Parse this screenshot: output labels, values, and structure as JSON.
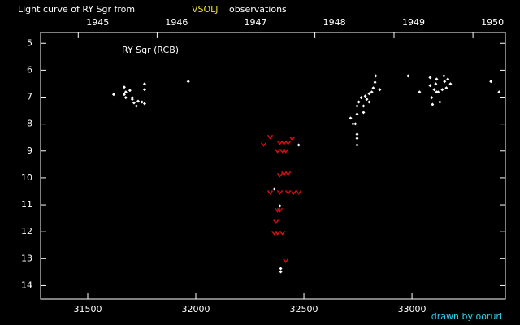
{
  "chart_data": {
    "type": "scatter",
    "title": "Light curve of RY Sgr from",
    "title_source": "VSOLJ",
    "title_suffix": "observations",
    "annotation": "RY Sgr (RCB)",
    "credit": "drawn by ooruri",
    "xlim": [
      31282,
      33432
    ],
    "ylim": [
      4.6,
      14.5
    ],
    "y_inverted": true,
    "xticks": [
      31500,
      32000,
      32500,
      33000
    ],
    "yticks": [
      5,
      6,
      7,
      8,
      9,
      10,
      11,
      12,
      13,
      14
    ],
    "x2ticks": [
      {
        "value": 31456,
        "label": "1945"
      },
      {
        "value": 31821,
        "label": "1946"
      },
      {
        "value": 32186,
        "label": "1947"
      },
      {
        "value": 32551,
        "label": "1948"
      },
      {
        "value": 32917,
        "label": "1949"
      },
      {
        "value": 33282,
        "label": "1950"
      }
    ],
    "series": [
      {
        "marker": "dot",
        "color": "#ffffff",
        "x": [
          31620,
          31669,
          31676,
          31695,
          31676,
          31706,
          31714,
          31725,
          31733,
          31751,
          31763,
          31763,
          31763,
          31669,
          31706,
          31965,
          32363,
          32389,
          32476,
          32393,
          32393,
          32716,
          32727,
          32738,
          32746,
          32746,
          32754,
          32765,
          32776,
          32784,
          32791,
          32802,
          32814,
          32821,
          32829,
          32832,
          32802,
          32776,
          32746,
          32746,
          32746,
          32851,
          32982,
          33035,
          33084,
          33084,
          33091,
          33095,
          33103,
          33110,
          33114,
          33121,
          33129,
          33140,
          33148,
          33151,
          33159,
          33166,
          33178,
          33114,
          33365,
          33403
        ],
        "values": [
          6.9,
          6.63,
          6.81,
          6.75,
          7.02,
          7.02,
          7.21,
          7.33,
          7.15,
          7.18,
          6.51,
          6.72,
          7.24,
          6.9,
          7.08,
          6.42,
          10.41,
          11.04,
          8.78,
          13.37,
          13.49,
          7.78,
          7.99,
          7.99,
          7.63,
          7.33,
          7.18,
          7.02,
          7.33,
          6.96,
          7.08,
          6.87,
          6.81,
          6.66,
          6.45,
          6.21,
          7.18,
          7.57,
          8.53,
          8.78,
          8.38,
          6.72,
          6.21,
          6.81,
          6.27,
          6.57,
          7.02,
          7.27,
          6.72,
          6.51,
          6.81,
          6.81,
          7.18,
          6.72,
          6.21,
          6.42,
          6.66,
          6.33,
          6.51,
          6.33,
          6.42,
          6.81
        ]
      },
      {
        "marker": "v",
        "color": "#d01010",
        "x": [
          32314,
          32344,
          32389,
          32408,
          32427,
          32378,
          32401,
          32416,
          32389,
          32408,
          32427,
          32344,
          32389,
          32427,
          32453,
          32476,
          32371,
          32378,
          32389,
          32363,
          32378,
          32401,
          32416,
          32446
        ],
        "values": [
          8.75,
          8.47,
          8.69,
          8.69,
          8.69,
          8.99,
          8.99,
          8.99,
          9.89,
          9.83,
          9.83,
          10.53,
          10.53,
          10.53,
          10.53,
          10.53,
          11.62,
          11.19,
          11.19,
          12.04,
          12.04,
          12.04,
          13.07,
          8.53
        ]
      }
    ]
  }
}
